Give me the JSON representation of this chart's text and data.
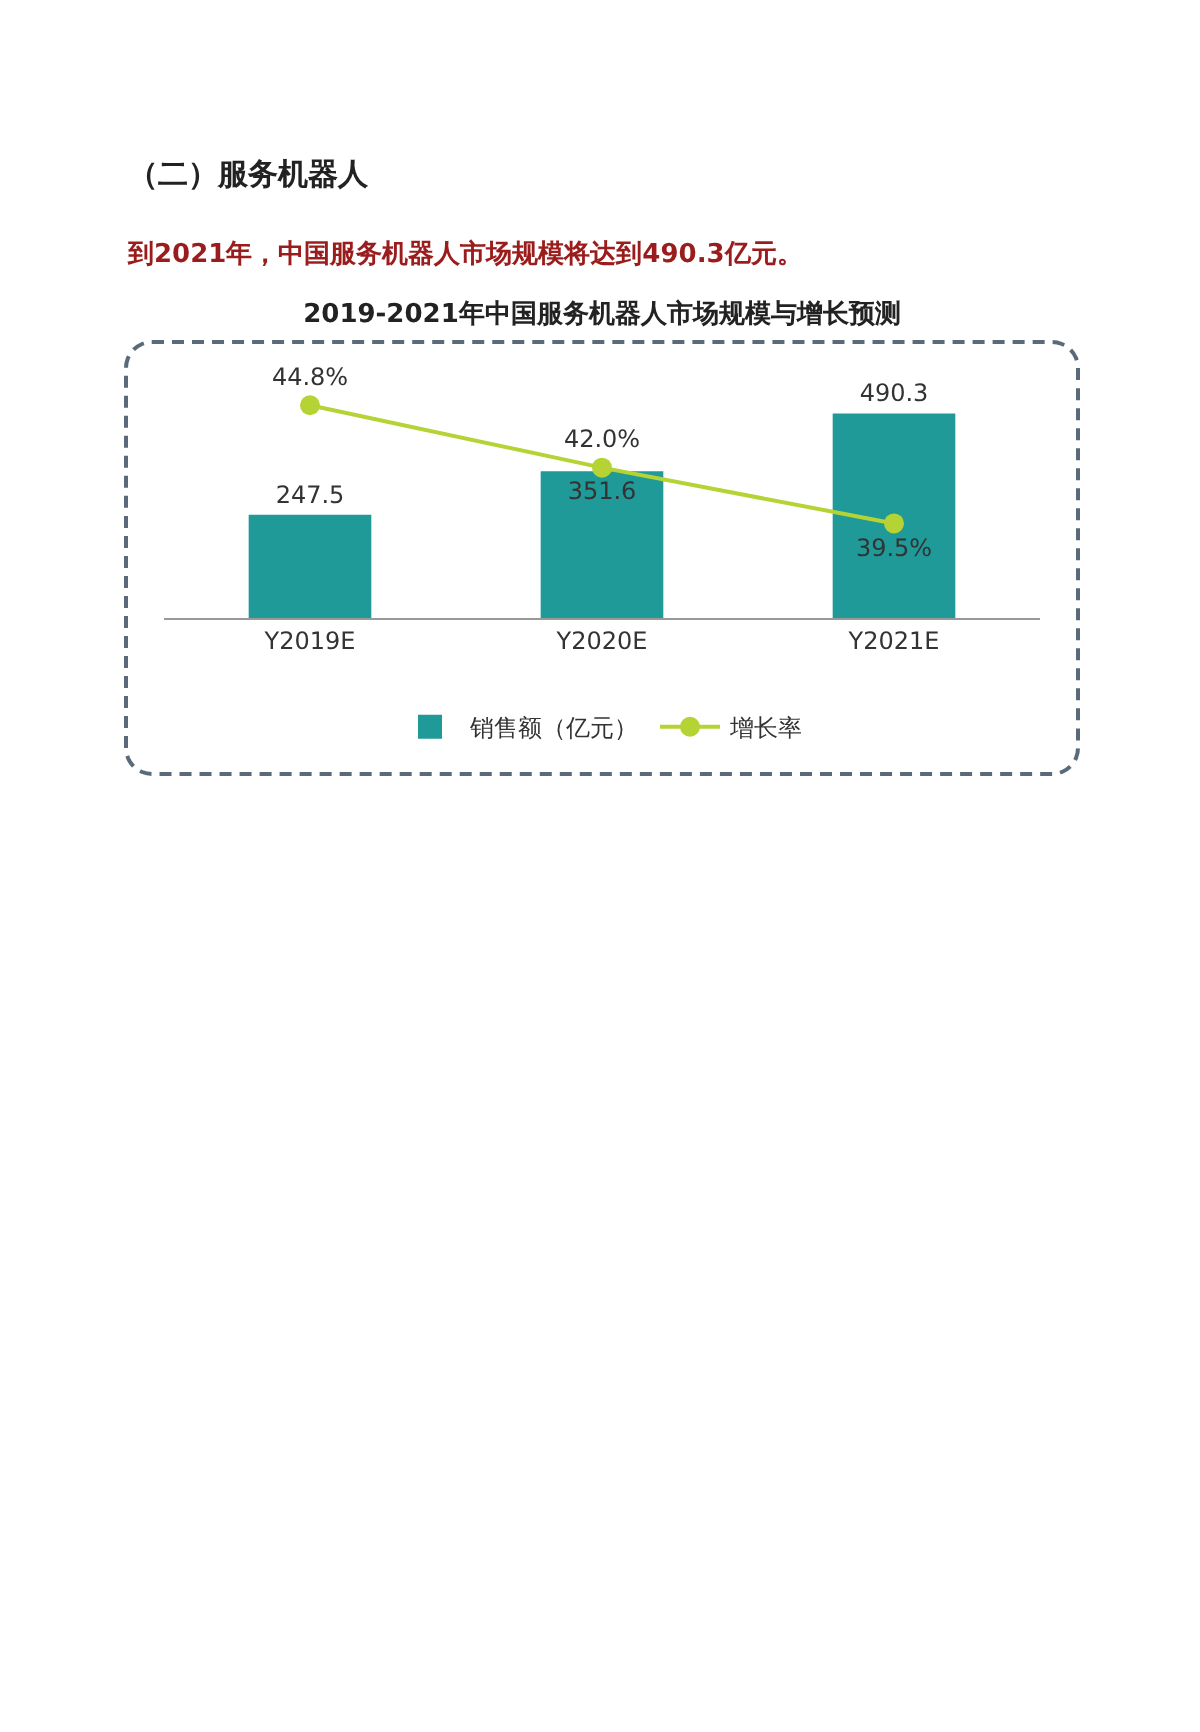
{
  "chart_data": {
    "type": "bar",
    "title": "2019-2021年中国服务机器人市场规模与增长预测",
    "annotations": [
      "（二）服务机器人",
      "到2021年，中国服务机器人市场规模将达到490.3亿元。"
    ],
    "categories": [
      "Y2019E",
      "Y2020E",
      "Y2021E"
    ],
    "series": [
      {
        "name": "销售额（亿元）",
        "color": "#1f9a99",
        "values": [
          247.5,
          351.6,
          490.3
        ],
        "value_labels": [
          "247.5",
          "351.6",
          "490.3"
        ]
      },
      {
        "name": "增长率",
        "type": "line",
        "axis": "y2",
        "color": "#b5d334",
        "values": [
          44.8,
          42.0,
          39.5
        ],
        "value_labels": [
          "44.8%",
          "42.0%",
          "39.5%"
        ]
      }
    ],
    "marker": "circle",
    "tick_labels": "x",
    "legend": "bottom",
    "grid": false
  }
}
